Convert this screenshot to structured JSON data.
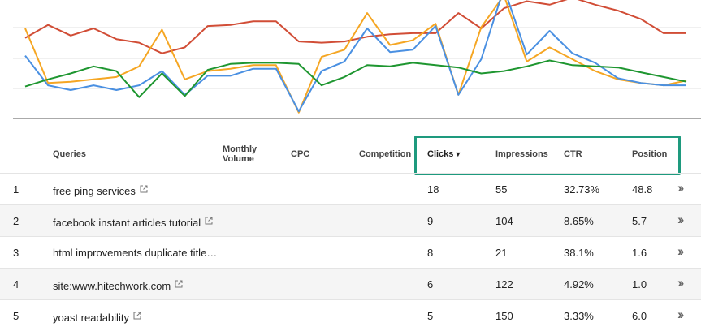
{
  "chart_data": {
    "type": "line",
    "title": "",
    "xlabel": "",
    "ylabel": "",
    "grid": true,
    "legend": "none",
    "x": [
      1,
      2,
      3,
      4,
      5,
      6,
      7,
      8,
      9,
      10,
      11,
      12,
      13,
      14,
      15,
      16,
      17,
      18,
      19,
      20,
      21,
      22,
      23,
      24,
      25,
      26,
      27,
      28,
      29,
      30
    ],
    "ylim": [
      0,
      100
    ],
    "series": [
      {
        "color": "#d14d36",
        "values": [
          68,
          79,
          70,
          76,
          67,
          64,
          55,
          60,
          78,
          79,
          82,
          82,
          65,
          64,
          65,
          69,
          71,
          72,
          72,
          89,
          76,
          93,
          99,
          96,
          102,
          96,
          91,
          84,
          72,
          72
        ]
      },
      {
        "color": "#f5a623",
        "values": [
          76,
          30,
          31,
          33,
          35,
          44,
          75,
          33,
          40,
          42,
          45,
          45,
          5,
          52,
          58,
          89,
          62,
          66,
          80,
          20,
          77,
          104,
          48,
          60,
          50,
          40,
          33,
          30,
          28,
          32
        ]
      },
      {
        "color": "#4a90e2",
        "values": [
          53,
          28,
          24,
          28,
          24,
          28,
          40,
          20,
          36,
          36,
          42,
          42,
          6,
          40,
          48,
          76,
          56,
          58,
          78,
          20,
          50,
          110,
          54,
          74,
          55,
          47,
          34,
          30,
          28,
          28
        ]
      },
      {
        "color": "#1e9630",
        "values": [
          27,
          33,
          38,
          44,
          40,
          18,
          38,
          19,
          41,
          46,
          47,
          47,
          46,
          28,
          35,
          45,
          44,
          47,
          45,
          43,
          38,
          40,
          44,
          49,
          45,
          44,
          43,
          39,
          35,
          31
        ]
      }
    ]
  },
  "table": {
    "headers": {
      "queries": "Queries",
      "monthly_volume_line1": "Monthly",
      "monthly_volume_line2": "Volume",
      "cpc": "CPC",
      "competition": "Competition",
      "clicks": "Clicks",
      "clicks_sort": "▼",
      "impressions": "Impressions",
      "ctr": "CTR",
      "position": "Position"
    },
    "rows": [
      {
        "num": "1",
        "query": "free ping services",
        "external": true,
        "clicks": "18",
        "impressions": "55",
        "ctr": "32.73%",
        "position": "48.8"
      },
      {
        "num": "2",
        "query": "facebook instant articles tutorial",
        "external": true,
        "clicks": "9",
        "impressions": "104",
        "ctr": "8.65%",
        "position": "5.7"
      },
      {
        "num": "3",
        "query": "html improvements duplicate title…",
        "external": false,
        "clicks": "8",
        "impressions": "21",
        "ctr": "38.1%",
        "position": "1.6"
      },
      {
        "num": "4",
        "query": "site:www.hitechwork.com",
        "external": true,
        "clicks": "6",
        "impressions": "122",
        "ctr": "4.92%",
        "position": "1.0"
      },
      {
        "num": "5",
        "query": "yoast readability",
        "external": true,
        "clicks": "5",
        "impressions": "150",
        "ctr": "3.33%",
        "position": "6.0"
      }
    ],
    "row_action_icon": "double-chevron-right-icon",
    "external_link_icon": "external-link-icon"
  }
}
